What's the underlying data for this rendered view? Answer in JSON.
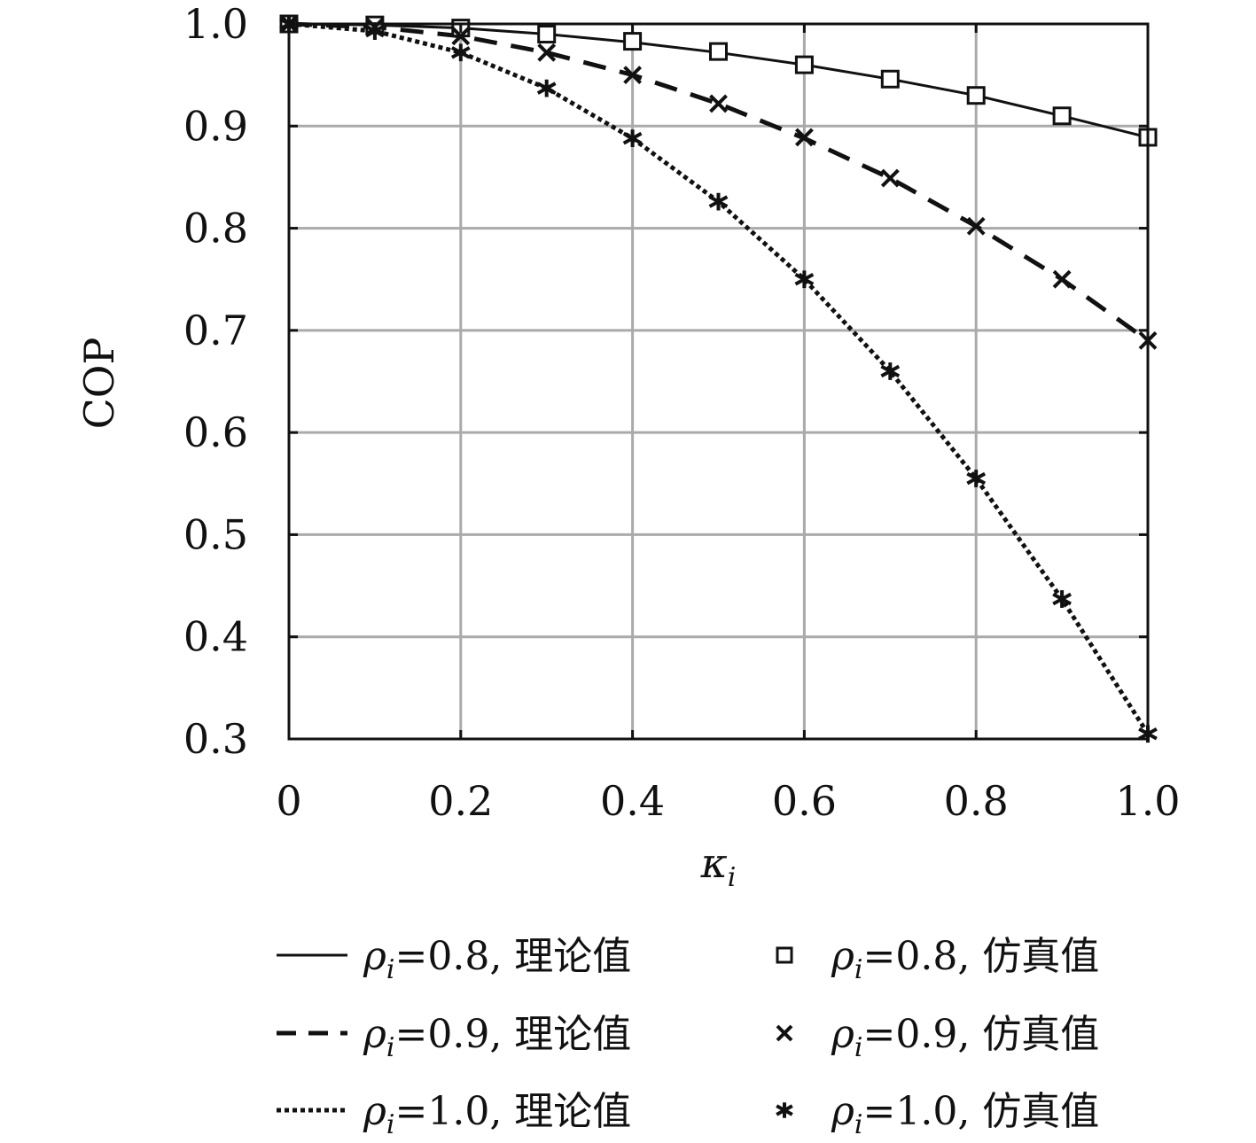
{
  "chart_data": {
    "type": "line",
    "title": "",
    "xlabel": "κ",
    "xlabel_sub": "i",
    "ylabel": "COP",
    "xlim": [
      0,
      1.0
    ],
    "ylim": [
      0.3,
      1.0
    ],
    "xticks": [
      0,
      0.2,
      0.4,
      0.6,
      0.8,
      1.0
    ],
    "xtick_labels": [
      "0",
      "0.2",
      "0.4",
      "0.6",
      "0.8",
      "1.0"
    ],
    "yticks": [
      0.3,
      0.4,
      0.5,
      0.6,
      0.7,
      0.8,
      0.9,
      1.0
    ],
    "ytick_labels": [
      "0.3",
      "0.4",
      "0.5",
      "0.6",
      "0.7",
      "0.8",
      "0.9",
      "1.0"
    ],
    "grid": true,
    "legend_position": "bottom",
    "x": [
      0,
      0.1,
      0.2,
      0.3,
      0.4,
      0.5,
      0.6,
      0.7,
      0.8,
      0.9,
      1.0
    ],
    "series": [
      {
        "name": "ρi=0.8, 理论值",
        "kind": "theory",
        "line_style": "solid",
        "values": [
          1.0,
          0.999,
          0.996,
          0.99,
          0.982,
          0.972,
          0.96,
          0.946,
          0.93,
          0.91,
          0.889
        ]
      },
      {
        "name": "ρi=0.8, 仿真值",
        "kind": "simulation",
        "marker": "square",
        "values": [
          1.0,
          0.999,
          0.996,
          0.99,
          0.983,
          0.973,
          0.96,
          0.946,
          0.93,
          0.91,
          0.889
        ]
      },
      {
        "name": "ρi=0.9, 理论值",
        "kind": "theory",
        "line_style": "dashed",
        "values": [
          1.0,
          0.997,
          0.988,
          0.972,
          0.95,
          0.922,
          0.888,
          0.849,
          0.802,
          0.75,
          0.69
        ]
      },
      {
        "name": "ρi=0.9, 仿真值",
        "kind": "simulation",
        "marker": "x",
        "values": [
          1.0,
          0.997,
          0.988,
          0.972,
          0.95,
          0.922,
          0.889,
          0.849,
          0.802,
          0.75,
          0.69
        ]
      },
      {
        "name": "ρi=1.0, 理论值",
        "kind": "theory",
        "line_style": "dotted",
        "values": [
          1.0,
          0.993,
          0.972,
          0.937,
          0.888,
          0.826,
          0.75,
          0.66,
          0.555,
          0.437,
          0.305
        ]
      },
      {
        "name": "ρi=1.0, 仿真值",
        "kind": "simulation",
        "marker": "asterisk",
        "values": [
          1.0,
          0.993,
          0.972,
          0.937,
          0.888,
          0.826,
          0.75,
          0.66,
          0.555,
          0.437,
          0.305
        ]
      }
    ],
    "legend": [
      {
        "rho_symbol": "ρ",
        "rho_sub": "i",
        "text": "=0.8, 理论值",
        "sample": "solid"
      },
      {
        "rho_symbol": "ρ",
        "rho_sub": "i",
        "text": "=0.8, 仿真值",
        "sample": "square"
      },
      {
        "rho_symbol": "ρ",
        "rho_sub": "i",
        "text": "=0.9, 理论值",
        "sample": "dashed"
      },
      {
        "rho_symbol": "ρ",
        "rho_sub": "i",
        "text": "=0.9, 仿真值",
        "sample": "x"
      },
      {
        "rho_symbol": "ρ",
        "rho_sub": "i",
        "text": "=1.0, 理论值",
        "sample": "dotted"
      },
      {
        "rho_symbol": "ρ",
        "rho_sub": "i",
        "text": "=1.0, 仿真值",
        "sample": "asterisk"
      }
    ],
    "colors": {
      "line": "#111111",
      "grid": "#aaaaaa",
      "axis": "#111111"
    }
  }
}
